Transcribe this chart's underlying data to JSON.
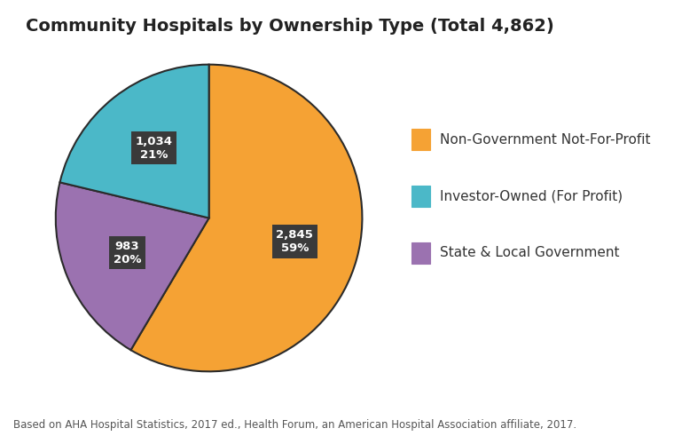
{
  "title": "Community Hospitals by Ownership Type (Total 4,862)",
  "slices": [
    {
      "label": "Non-Government Not-For-Profit",
      "value": 2845,
      "pct": 59,
      "color": "#F5A234"
    },
    {
      "label": "State & Local Government",
      "value": 983,
      "pct": 20,
      "color": "#9B72B0"
    },
    {
      "label": "Investor-Owned (For Profit)",
      "value": 1034,
      "pct": 21,
      "color": "#4BB8C8"
    }
  ],
  "label_texts": [
    "2,845\n59%",
    "983\n20%",
    "1,034\n21%"
  ],
  "label_box_color": "#3A3A3A",
  "label_text_color": "#ffffff",
  "legend_colors": [
    "#F5A234",
    "#4BB8C8",
    "#9B72B0"
  ],
  "legend_labels": [
    "Non-Government Not-For-Profit",
    "Investor-Owned (For Profit)",
    "State & Local Government"
  ],
  "footnote": "Based on AHA Hospital Statistics, 2017 ed., Health Forum, an American Hospital Association affiliate, 2017.",
  "background_color": "#ffffff",
  "title_fontsize": 14,
  "legend_fontsize": 11,
  "footnote_fontsize": 8.5,
  "startangle": 90,
  "edge_color": "#2B2B2B",
  "edge_width": 1.5
}
